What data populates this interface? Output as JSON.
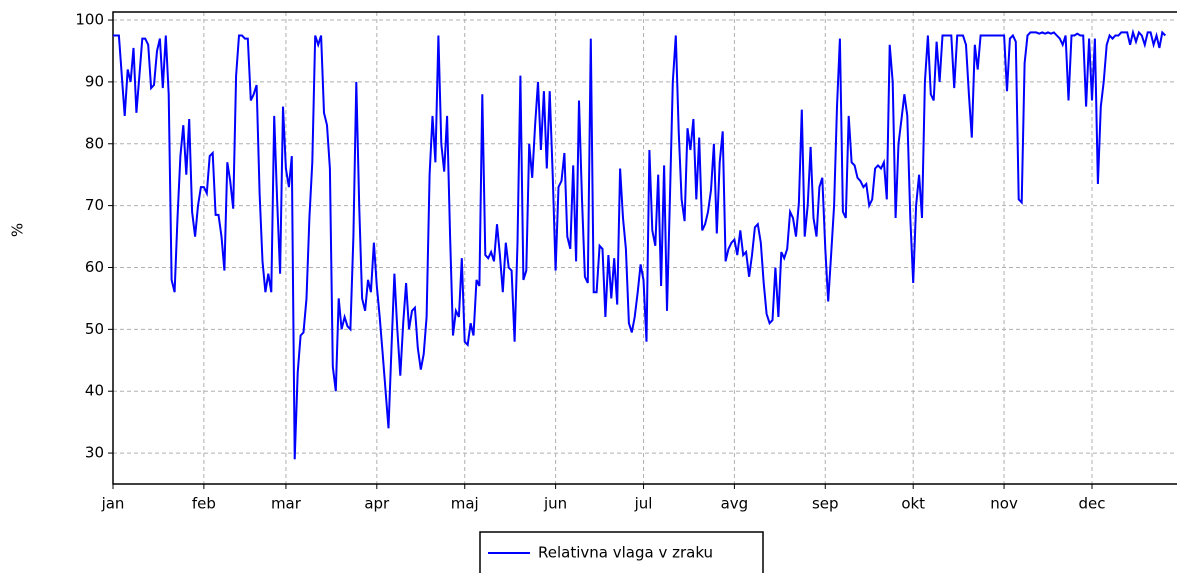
{
  "chart_data": {
    "type": "line",
    "y_label": "%",
    "x": [
      0,
      1,
      2,
      3,
      4,
      5,
      6,
      7,
      8,
      9,
      10,
      11,
      12,
      13,
      14,
      15,
      16,
      17,
      18,
      19,
      20,
      21,
      22,
      23,
      24,
      25,
      26,
      27,
      28,
      29,
      30,
      31,
      32,
      33,
      34,
      35,
      36,
      37,
      38,
      39,
      40,
      41,
      42,
      43,
      44,
      45,
      46,
      47,
      48,
      49,
      50,
      51,
      52,
      53,
      54,
      55,
      56,
      57,
      58,
      59,
      60,
      61,
      62,
      63,
      64,
      65,
      66,
      67,
      68,
      69,
      70,
      71,
      72,
      73,
      74,
      75,
      76,
      77,
      78,
      79,
      80,
      81,
      82,
      83,
      84,
      85,
      86,
      87,
      88,
      89,
      90,
      91,
      92,
      93,
      94,
      95,
      96,
      97,
      98,
      99,
      100,
      101,
      102,
      103,
      104,
      105,
      106,
      107,
      108,
      109,
      110,
      111,
      112,
      113,
      114,
      115,
      116,
      117,
      118,
      119,
      120,
      121,
      122,
      123,
      124,
      125,
      126,
      127,
      128,
      129,
      130,
      131,
      132,
      133,
      134,
      135,
      136,
      137,
      138,
      139,
      140,
      141,
      142,
      143,
      144,
      145,
      146,
      147,
      148,
      149,
      150,
      151,
      152,
      153,
      154,
      155,
      156,
      157,
      158,
      159,
      160,
      161,
      162,
      163,
      164,
      165,
      166,
      167,
      168,
      169,
      170,
      171,
      172,
      173,
      174,
      175,
      176,
      177,
      178,
      179,
      180,
      181,
      182,
      183,
      184,
      185,
      186,
      187,
      188,
      189,
      190,
      191,
      192,
      193,
      194,
      195,
      196,
      197,
      198,
      199,
      200,
      201,
      202,
      203,
      204,
      205,
      206,
      207,
      208,
      209,
      210,
      211,
      212,
      213,
      214,
      215,
      216,
      217,
      218,
      219,
      220,
      221,
      222,
      223,
      224,
      225,
      226,
      227,
      228,
      229,
      230,
      231,
      232,
      233,
      234,
      235,
      236,
      237,
      238,
      239,
      240,
      241,
      242,
      243,
      244,
      245,
      246,
      247,
      248,
      249,
      250,
      251,
      252,
      253,
      254,
      255,
      256,
      257,
      258,
      259,
      260,
      261,
      262,
      263,
      264,
      265,
      266,
      267,
      268,
      269,
      270,
      271,
      272,
      273,
      274,
      275,
      276,
      277,
      278,
      279,
      280,
      281,
      282,
      283,
      284,
      285,
      286,
      287,
      288,
      289,
      290,
      291,
      292,
      293,
      294,
      295,
      296,
      297,
      298,
      299,
      300,
      301,
      302,
      303,
      304,
      305,
      306,
      307,
      308,
      309,
      310,
      311,
      312,
      313,
      314,
      315,
      316,
      317,
      318,
      319,
      320,
      321,
      322,
      323,
      324,
      325,
      326,
      327,
      328,
      329,
      330,
      331,
      332,
      333,
      334,
      335,
      336,
      337,
      338,
      339,
      340,
      341,
      342,
      343,
      344,
      345,
      346,
      347,
      348,
      349,
      350,
      351,
      352,
      353,
      354,
      355,
      356,
      357,
      358,
      359
    ],
    "series": [
      {
        "name": "Relativna vlaga v zraku",
        "color": "#0000ff",
        "values": [
          97.5,
          97.5,
          97.5,
          91,
          84.5,
          92,
          90,
          95.5,
          85,
          91,
          97,
          97,
          96,
          89,
          89.5,
          95,
          97,
          89,
          97.5,
          88,
          58,
          56,
          68,
          78,
          83,
          75,
          84,
          69,
          65,
          70,
          73,
          73,
          72,
          78,
          78.5,
          68.5,
          68.5,
          65,
          59.5,
          77,
          74,
          69.5,
          91,
          97.5,
          97.5,
          97,
          97,
          87,
          88,
          89.5,
          72,
          61,
          56,
          59,
          56,
          84.5,
          71,
          59,
          86,
          76,
          73,
          78,
          29,
          43,
          49,
          49.5,
          55,
          68,
          77,
          97.5,
          96,
          97.5,
          85,
          83,
          76,
          44,
          40,
          55,
          50,
          52,
          50.5,
          50,
          65,
          90,
          70,
          55,
          53,
          58,
          56,
          64,
          57,
          52,
          46,
          40,
          34,
          47,
          59,
          50,
          42.5,
          51,
          57.5,
          50,
          53,
          53.5,
          47,
          43.5,
          46,
          52,
          75,
          84.5,
          77,
          97.5,
          80,
          75.5,
          84.5,
          65,
          49,
          53,
          52,
          61.5,
          48,
          47.5,
          51,
          49,
          58,
          57,
          88,
          62,
          61.5,
          62.5,
          61,
          67,
          62,
          56,
          64,
          60,
          59.5,
          48,
          64,
          91,
          58,
          59.5,
          80,
          74.5,
          83,
          90,
          79,
          88.5,
          76,
          88.5,
          75,
          59.5,
          73,
          74,
          78.5,
          65,
          63,
          76.5,
          61,
          87,
          71,
          58.5,
          57.5,
          97,
          56,
          56,
          63.5,
          63,
          52,
          62,
          55,
          61.5,
          54,
          76,
          68,
          63,
          51,
          49.5,
          52,
          56,
          60.5,
          58,
          48,
          79,
          66,
          63.5,
          75,
          57,
          76.5,
          53,
          71,
          90,
          97.5,
          82,
          71,
          67.5,
          82.5,
          79,
          84,
          71,
          81,
          66,
          67,
          69,
          72.5,
          80,
          65.5,
          77,
          82,
          61,
          63,
          64,
          64.5,
          62,
          66,
          62,
          62.5,
          58.5,
          62,
          66.5,
          67,
          64,
          57.5,
          52.5,
          51,
          51.5,
          60,
          52,
          62.5,
          61.5,
          63,
          69,
          68,
          65,
          70.5,
          85.5,
          65,
          70,
          79.5,
          68,
          65,
          73,
          74.5,
          63,
          54.5,
          62,
          70,
          86,
          97,
          69,
          68,
          84.5,
          77,
          76.5,
          74.5,
          74,
          73,
          73.5,
          70,
          71,
          76,
          76.5,
          76,
          77,
          71,
          96,
          90,
          68,
          80,
          84,
          88,
          84.5,
          68,
          57.5,
          70,
          75,
          68,
          90,
          97.5,
          88,
          87,
          96.5,
          90,
          97.5,
          97.5,
          97.5,
          97.5,
          89,
          97.5,
          97.5,
          97.5,
          96,
          88,
          81,
          96,
          92,
          97.5,
          97.5,
          97.5,
          97.5,
          97.5,
          97.5,
          97.5,
          97.5,
          97.5,
          88.5,
          97,
          97.5,
          96.5,
          71,
          70.5,
          93,
          97.5,
          98,
          98,
          98,
          97.8,
          98,
          97.8,
          98,
          97.8,
          98,
          97.5,
          97,
          96,
          97.5,
          87,
          97.5,
          97.5,
          97.8,
          97.5,
          97.5,
          86,
          97,
          87,
          97,
          73.5,
          86,
          90,
          96,
          97.5,
          97,
          97.5,
          97.5,
          98,
          98,
          98,
          96,
          98,
          96.5,
          98,
          97.5,
          96,
          98,
          98,
          96,
          97.5,
          95.5,
          98,
          97.5
        ]
      }
    ],
    "xlim": [
      0,
      363
    ],
    "ylim": [
      25,
      101.3
    ],
    "xticks": [
      {
        "value": 0,
        "label": "jan"
      },
      {
        "value": 31,
        "label": "feb"
      },
      {
        "value": 59,
        "label": "mar"
      },
      {
        "value": 90,
        "label": "apr"
      },
      {
        "value": 120,
        "label": "maj"
      },
      {
        "value": 151,
        "label": "jun"
      },
      {
        "value": 181,
        "label": "jul"
      },
      {
        "value": 212,
        "label": "avg"
      },
      {
        "value": 243,
        "label": "sep"
      },
      {
        "value": 273,
        "label": "okt"
      },
      {
        "value": 304,
        "label": "nov"
      },
      {
        "value": 334,
        "label": "dec"
      }
    ],
    "yticks": [
      30,
      40,
      50,
      60,
      70,
      80,
      90,
      100
    ],
    "grid": true
  }
}
